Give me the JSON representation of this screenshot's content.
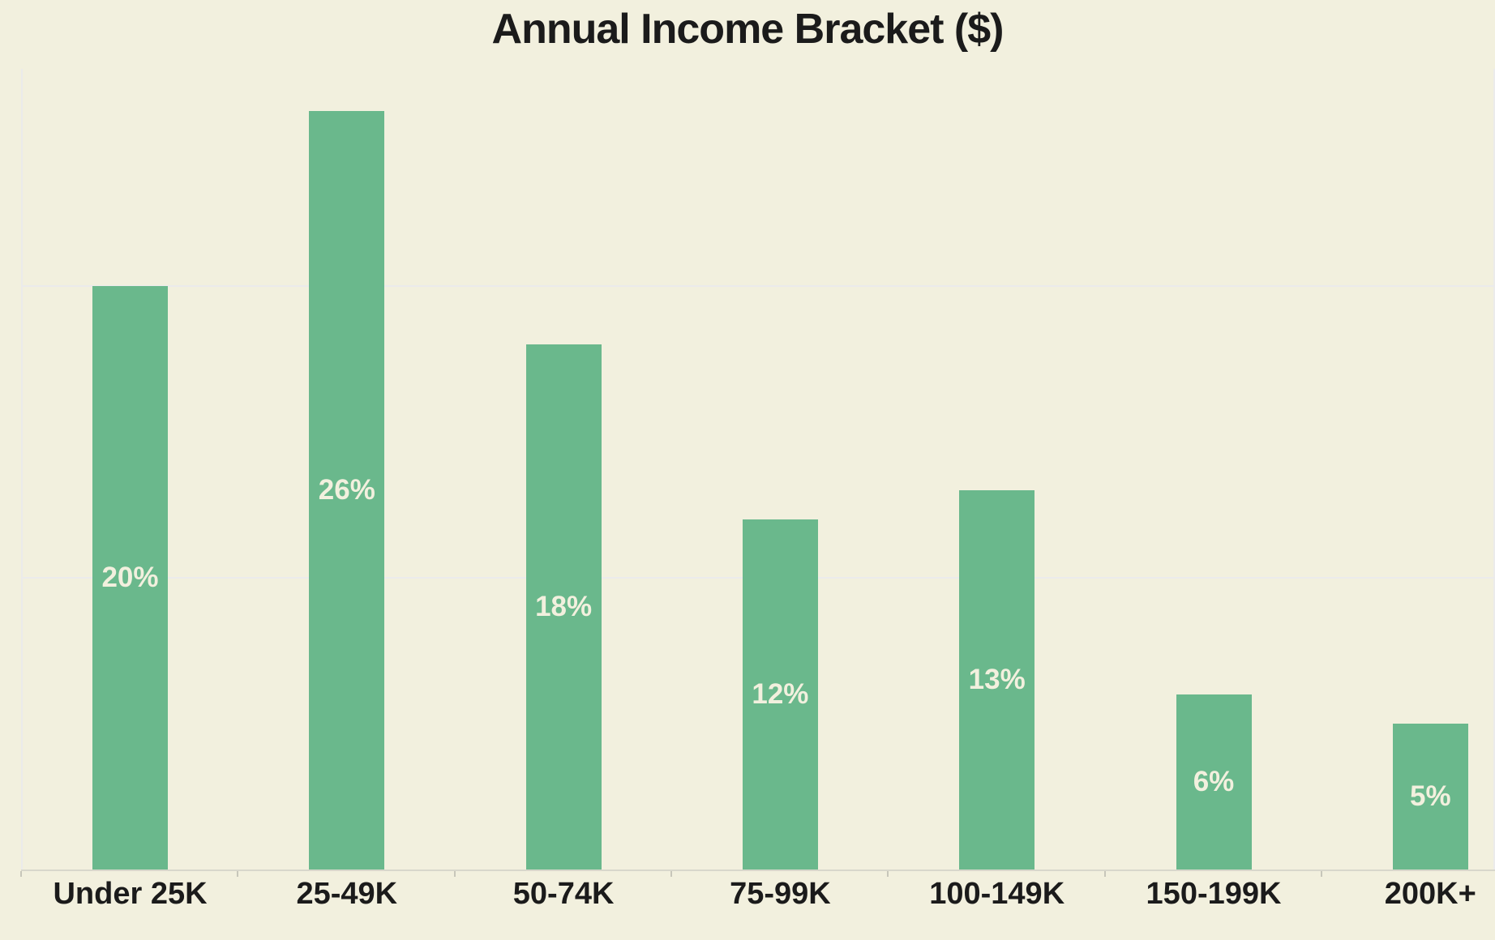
{
  "page": {
    "background_color": "#f2f0de",
    "text_color": "#1b1b1b"
  },
  "chart_data": {
    "type": "bar",
    "title": "Annual Income Bracket ($)",
    "categories": [
      "Under 25K",
      "25-49K",
      "50-74K",
      "75-99K",
      "100-149K",
      "150-199K",
      "200K+"
    ],
    "values": [
      20,
      26,
      18,
      12,
      13,
      6,
      5
    ],
    "value_labels": [
      "20%",
      "26%",
      "18%",
      "12%",
      "13%",
      "6%",
      "5%"
    ],
    "unit": "percent",
    "xlabel": "",
    "ylabel": "",
    "ylim": [
      0,
      27.5
    ],
    "gridline_values": [
      10,
      20
    ],
    "grid": "horizontal-faint",
    "legend_position": "none",
    "value_label_position": "inside-center",
    "colors": {
      "bar": "#6ab88c",
      "value_label": "#f2f0de",
      "background": "#f2f0de",
      "gridline": "#ebebeb",
      "axis_line": "#d8d7cb",
      "tick": "#c7c6ba",
      "text": "#1b1b1b"
    }
  }
}
